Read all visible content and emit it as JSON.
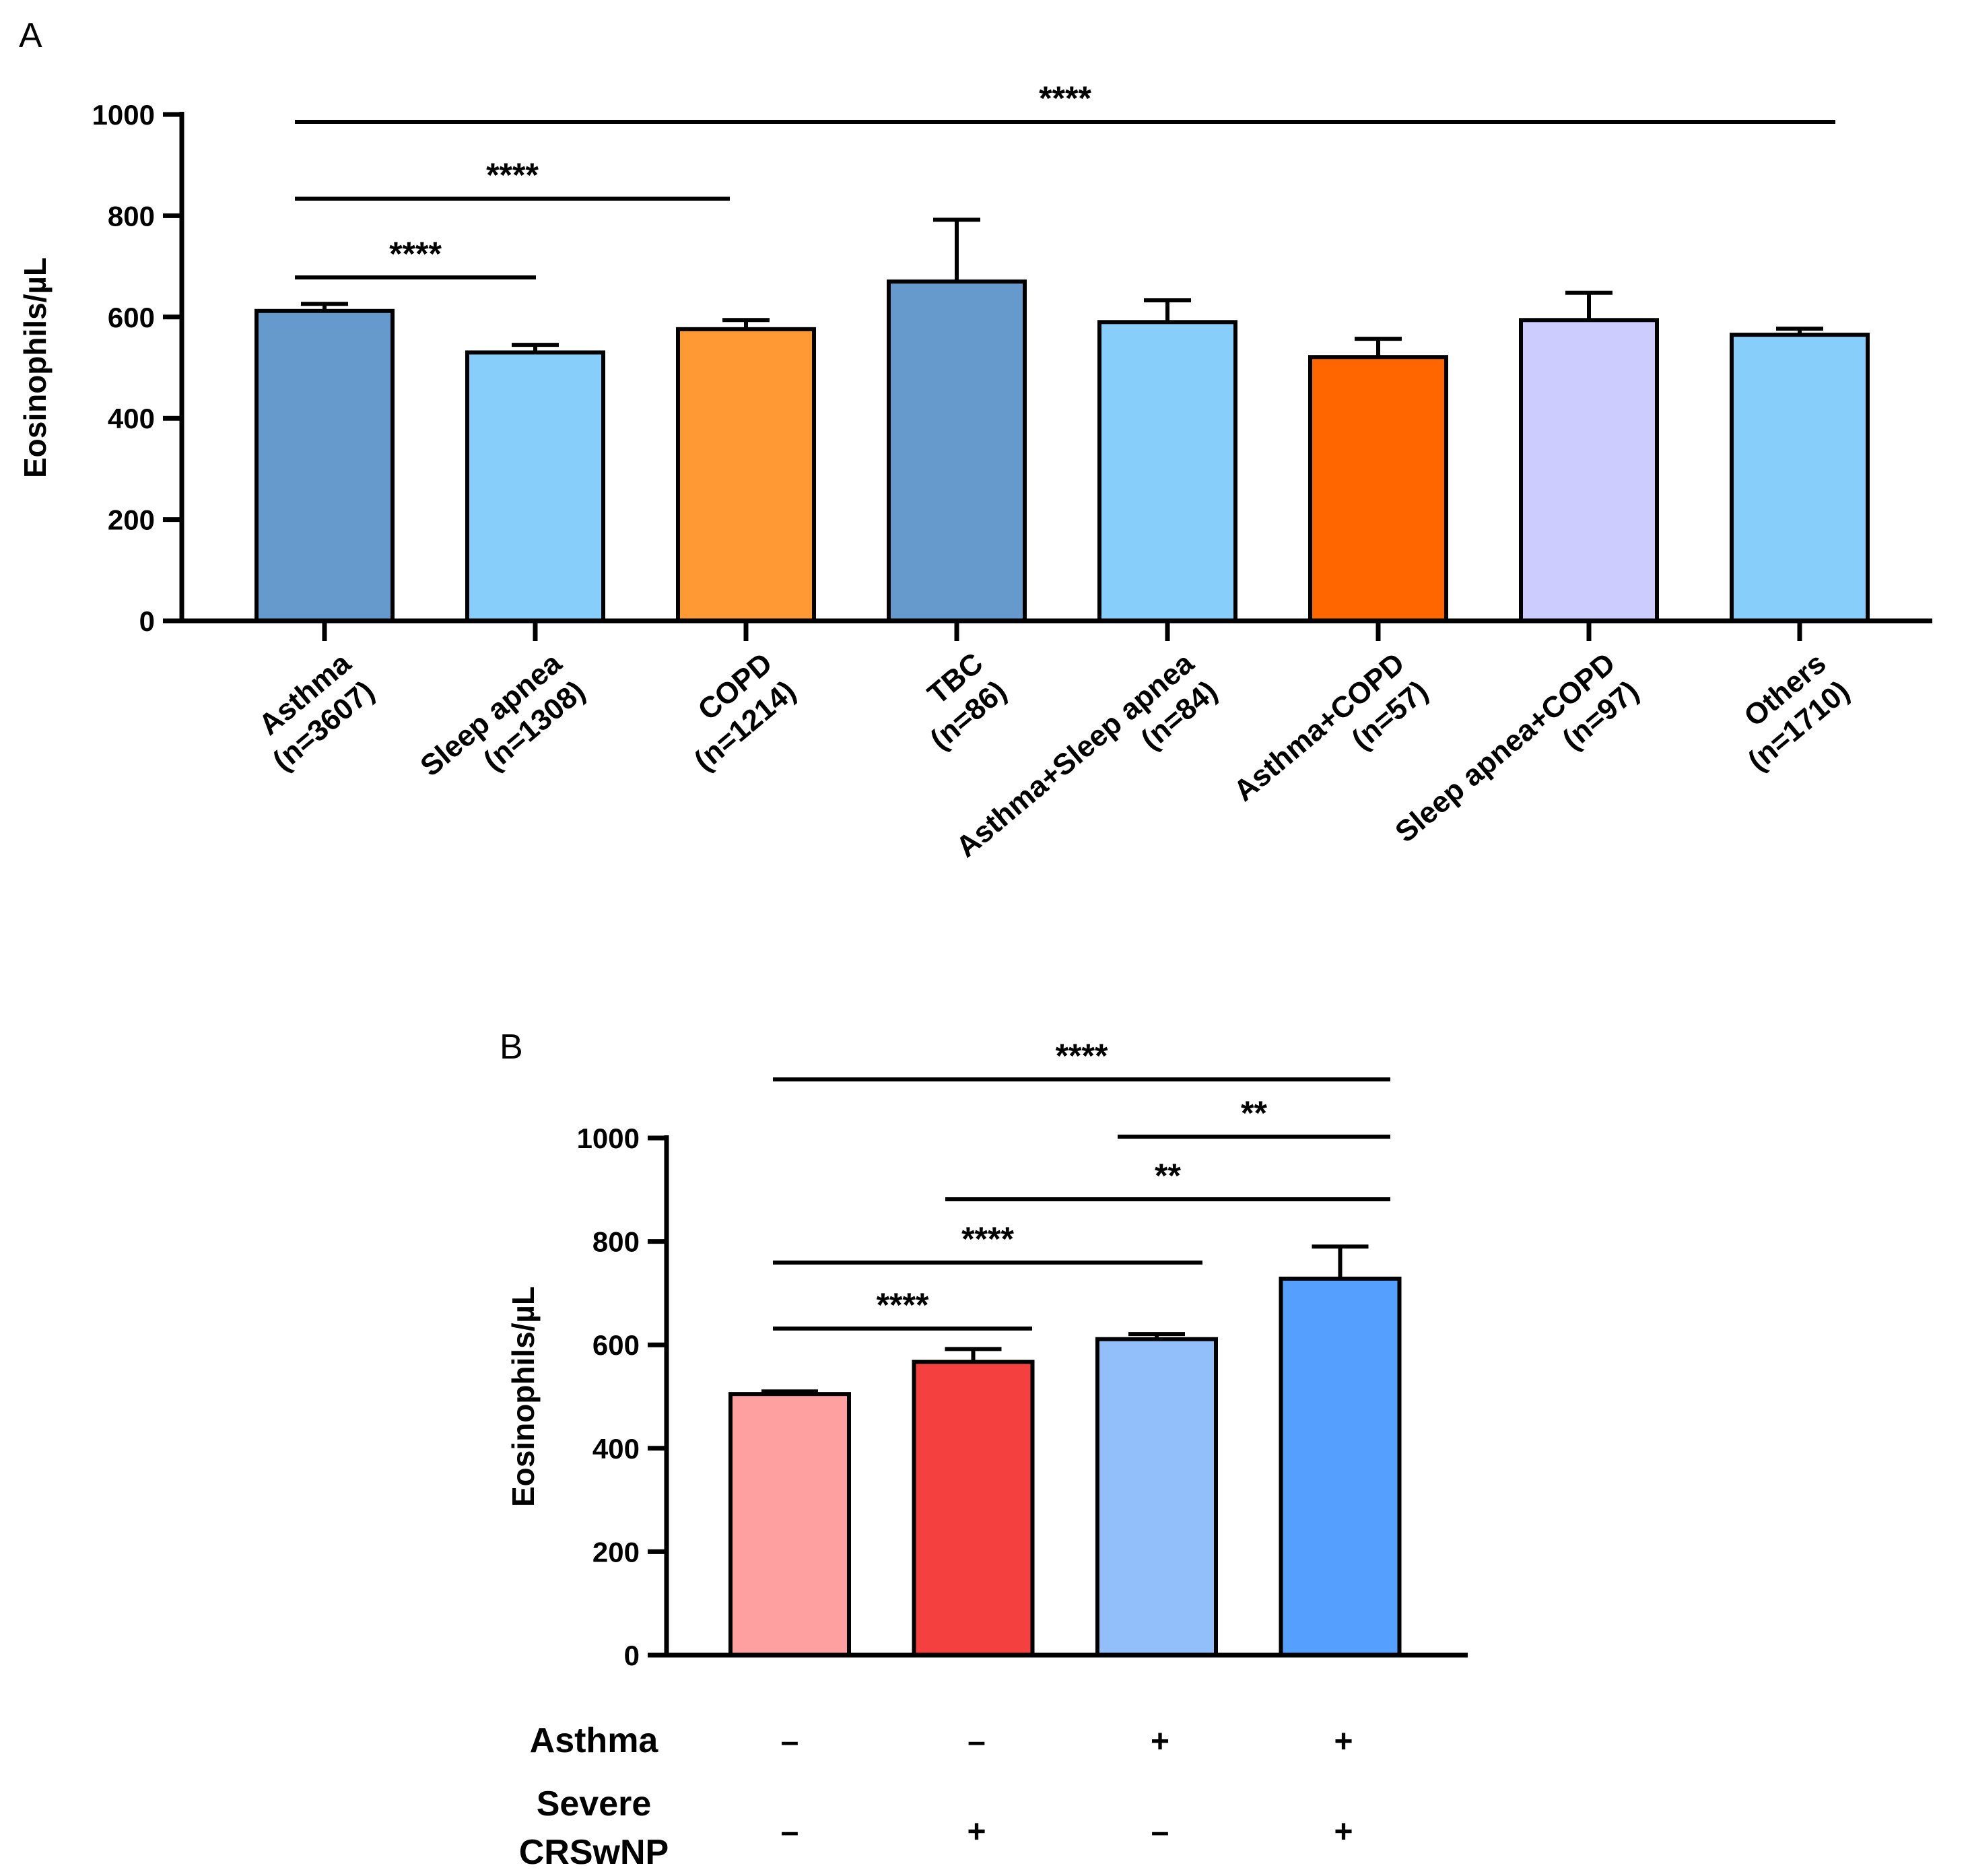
{
  "chart_data": [
    {
      "panel": "A",
      "type": "bar",
      "ylabel": "Eosinophils/µL",
      "ylim": [
        0,
        1000
      ],
      "yticks": [
        0,
        200,
        400,
        600,
        800,
        1000
      ],
      "categories": [
        [
          "Asthma",
          "(n=3607)"
        ],
        [
          "Sleep apnea",
          "(n=1308)"
        ],
        [
          "COPD",
          "(n=1214)"
        ],
        [
          "TBC",
          "(n=86)"
        ],
        [
          "Asthma+Sleep apnea",
          "(n=84)"
        ],
        [
          "Asthma+COPD",
          "(n=57)"
        ],
        [
          "Sleep apnea+COPD",
          "(n=97)"
        ],
        [
          "Others",
          "(n=1710)"
        ]
      ],
      "values": [
        612,
        530,
        576,
        670,
        590,
        521,
        594,
        565
      ],
      "errors": [
        14,
        15,
        18,
        122,
        43,
        36,
        54,
        12
      ],
      "colors": [
        "#6699cc",
        "#87cefa",
        "#ff9933",
        "#6699cc",
        "#87cefa",
        "#ff6600",
        "#ccccff",
        "#87cefa"
      ],
      "significance": [
        {
          "from": 0,
          "to": 1,
          "label": "****"
        },
        {
          "from": 0,
          "to": 2,
          "label": "****"
        },
        {
          "from": 0,
          "to": 7,
          "label": "****"
        }
      ]
    },
    {
      "panel": "B",
      "type": "bar",
      "ylabel": "Eosinophils/µL",
      "ylim": [
        0,
        1000
      ],
      "yticks": [
        0,
        200,
        400,
        600,
        800,
        1000
      ],
      "values": [
        505,
        567,
        611,
        728
      ],
      "errors": [
        5,
        25,
        10,
        62
      ],
      "colors": [
        "#ffa0a0",
        "#f54040",
        "#92bff9",
        "#55a0ff"
      ],
      "condition_rows": [
        {
          "label": [
            "Asthma"
          ],
          "marks": [
            "–",
            "–",
            "+",
            "+"
          ]
        },
        {
          "label": [
            "Severe",
            "CRSwNP"
          ],
          "marks": [
            "–",
            "+",
            "–",
            "+"
          ]
        }
      ],
      "significance": [
        {
          "from": 0,
          "to": 1,
          "label": "****"
        },
        {
          "from": 0,
          "to": 2,
          "label": "****"
        },
        {
          "from": 1,
          "to": 3,
          "label": "**"
        },
        {
          "from": 2,
          "to": 3,
          "label": "**"
        },
        {
          "from": 0,
          "to": 3,
          "label": "****"
        }
      ]
    }
  ]
}
